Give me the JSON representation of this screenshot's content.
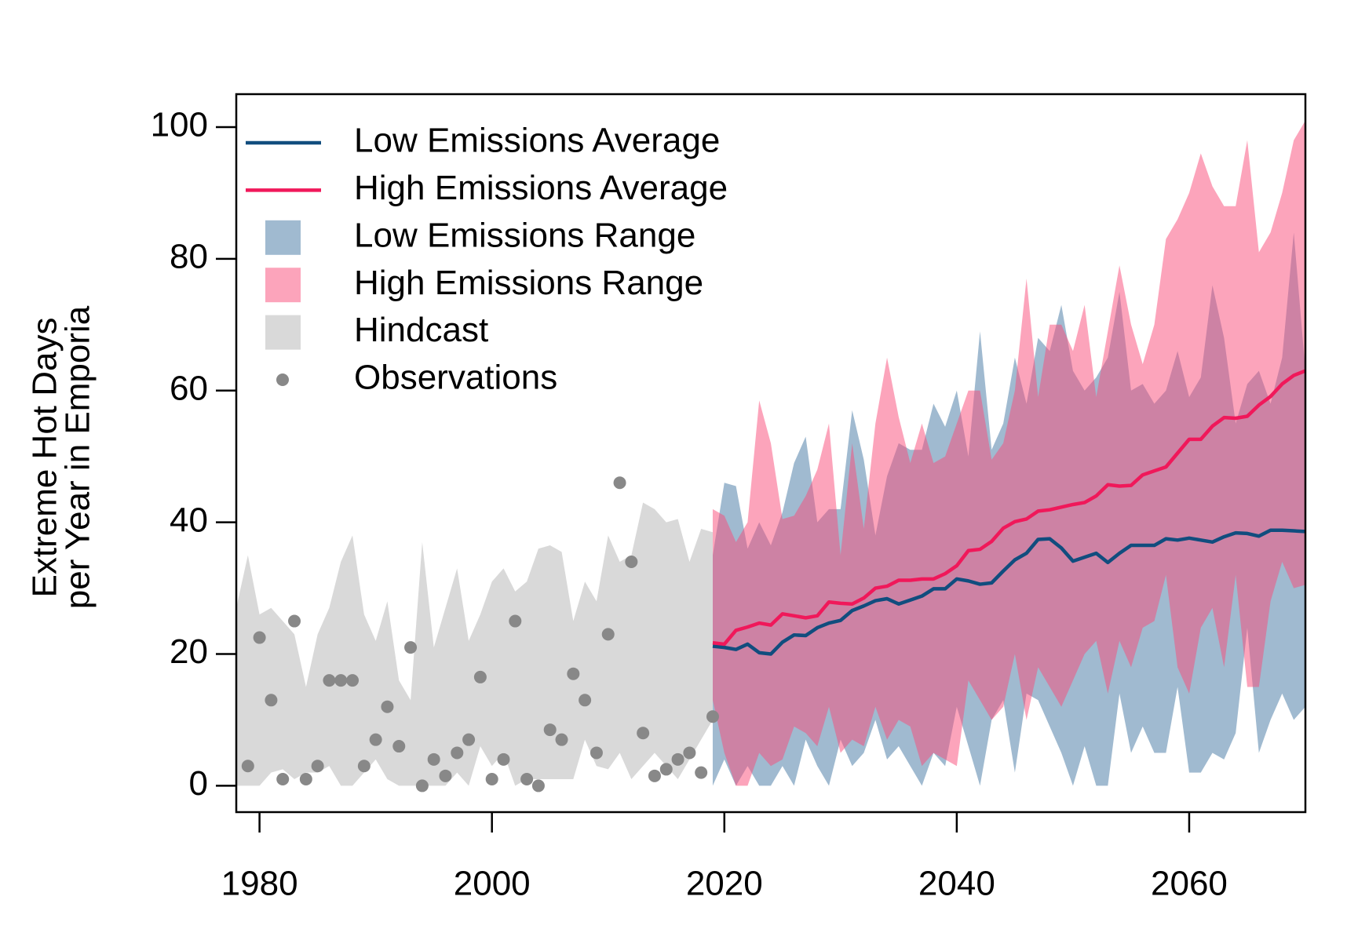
{
  "chart_data": {
    "type": "line",
    "ylabel": [
      "Extreme Hot Days",
      "per Year in Emporia"
    ],
    "xlim": [
      1978,
      2070
    ],
    "ylim": [
      -4,
      105
    ],
    "xticks": [
      1980,
      2000,
      2020,
      2040,
      2060
    ],
    "yticks": [
      0,
      20,
      40,
      60,
      80,
      100
    ],
    "legend": "top-left",
    "series": [
      {
        "name": "Low Emissions Average",
        "type": "line",
        "color": "#114d7e",
        "x": [
          2019,
          2020,
          2021,
          2022,
          2023,
          2024,
          2025,
          2026,
          2027,
          2028,
          2029,
          2030,
          2031,
          2032,
          2033,
          2034,
          2035,
          2036,
          2037,
          2038,
          2039,
          2040,
          2041,
          2042,
          2043,
          2044,
          2045,
          2046,
          2047,
          2048,
          2049,
          2050,
          2051,
          2052,
          2053,
          2054,
          2055,
          2056,
          2057,
          2058,
          2059,
          2060,
          2061,
          2062,
          2063,
          2064,
          2065,
          2066,
          2067,
          2068,
          2069,
          2070
        ],
        "values": [
          21.2,
          21,
          20.7,
          21.5,
          20.2,
          20,
          21.8,
          22.9,
          22.8,
          24,
          24.7,
          25.1,
          26.6,
          27.3,
          28.1,
          28.4,
          27.6,
          28.2,
          28.8,
          29.9,
          29.9,
          31.4,
          31.1,
          30.6,
          30.8,
          32.6,
          34.3,
          35.3,
          37.4,
          37.5,
          36.1,
          34.1,
          34.7,
          35.3,
          33.9,
          35.3,
          36.5,
          36.5,
          36.5,
          37.5,
          37.3,
          37.6,
          37.3,
          37,
          37.8,
          38.4,
          38.3,
          37.9,
          38.8,
          38.8,
          38.7,
          38.6
        ]
      },
      {
        "name": "High Emissions Average",
        "type": "line",
        "color": "#f0185a",
        "x": [
          2019,
          2020,
          2021,
          2022,
          2023,
          2024,
          2025,
          2026,
          2027,
          2028,
          2029,
          2030,
          2031,
          2032,
          2033,
          2034,
          2035,
          2036,
          2037,
          2038,
          2039,
          2040,
          2041,
          2042,
          2043,
          2044,
          2045,
          2046,
          2047,
          2048,
          2049,
          2050,
          2051,
          2052,
          2053,
          2054,
          2055,
          2056,
          2057,
          2058,
          2059,
          2060,
          2061,
          2062,
          2063,
          2064,
          2065,
          2066,
          2067,
          2068,
          2069,
          2070
        ],
        "values": [
          21.7,
          21.5,
          23.6,
          24.1,
          24.7,
          24.4,
          26.1,
          25.8,
          25.5,
          25.8,
          27.9,
          27.7,
          27.6,
          28.5,
          30,
          30.3,
          31.2,
          31.2,
          31.4,
          31.4,
          32.2,
          33.4,
          35.7,
          35.9,
          37.1,
          39.1,
          40.1,
          40.5,
          41.7,
          41.9,
          42.3,
          42.7,
          43,
          44,
          45.7,
          45.5,
          45.6,
          47.2,
          47.8,
          48.4,
          50.5,
          52.6,
          52.6,
          54.6,
          55.9,
          55.8,
          56.1,
          57.8,
          59.1,
          61,
          62.3,
          63
        ]
      },
      {
        "name": "Low Emissions Range",
        "type": "area",
        "color": "#4175a180",
        "x": [
          2019,
          2020,
          2021,
          2022,
          2023,
          2024,
          2025,
          2026,
          2027,
          2028,
          2029,
          2030,
          2031,
          2032,
          2033,
          2034,
          2035,
          2036,
          2037,
          2038,
          2039,
          2040,
          2041,
          2042,
          2043,
          2044,
          2045,
          2046,
          2047,
          2048,
          2049,
          2050,
          2051,
          2052,
          2053,
          2054,
          2055,
          2056,
          2057,
          2058,
          2059,
          2060,
          2061,
          2062,
          2063,
          2064,
          2065,
          2066,
          2067,
          2068,
          2069,
          2070
        ],
        "upper": [
          35,
          46,
          45.5,
          36,
          40,
          36.5,
          41.5,
          49,
          53,
          40,
          42,
          42,
          57,
          49.5,
          38,
          47,
          52,
          51,
          51,
          58,
          54.5,
          60,
          50,
          69,
          51,
          55,
          65,
          58,
          68,
          66,
          73,
          63,
          60,
          62,
          65,
          75,
          60,
          61,
          58,
          60,
          66,
          59,
          62,
          76,
          68,
          55,
          61,
          63,
          58,
          65,
          84,
          63
        ],
        "lower": [
          0,
          4,
          0,
          3,
          0,
          0,
          3,
          0,
          7,
          3,
          0,
          7,
          3,
          5,
          10,
          4,
          6,
          3,
          0,
          5,
          3,
          12,
          6,
          0,
          10,
          13,
          2,
          14,
          13,
          9,
          5,
          0,
          6,
          0,
          0,
          14,
          5,
          9,
          5,
          5,
          15,
          2,
          2,
          5,
          4,
          8,
          24,
          5,
          10,
          14,
          10,
          12
        ]
      },
      {
        "name": "High Emissions Range",
        "type": "area",
        "color": "#f9497780",
        "x": [
          2019,
          2020,
          2021,
          2022,
          2023,
          2024,
          2025,
          2026,
          2027,
          2028,
          2029,
          2030,
          2031,
          2032,
          2033,
          2034,
          2035,
          2036,
          2037,
          2038,
          2039,
          2040,
          2041,
          2042,
          2043,
          2044,
          2045,
          2046,
          2047,
          2048,
          2049,
          2050,
          2051,
          2052,
          2053,
          2054,
          2055,
          2056,
          2057,
          2058,
          2059,
          2060,
          2061,
          2062,
          2063,
          2064,
          2065,
          2066,
          2067,
          2068,
          2069,
          2070
        ],
        "upper": [
          42,
          41,
          37,
          40,
          58.5,
          52,
          40.5,
          41,
          44,
          48,
          55,
          35,
          52,
          39,
          55,
          65,
          56,
          49,
          55,
          49,
          50,
          55,
          60,
          60,
          49.5,
          52,
          60,
          77,
          59,
          70,
          70,
          66,
          73,
          59,
          69,
          79,
          70,
          64,
          70,
          83,
          86,
          90,
          96,
          91,
          88,
          88,
          98,
          81,
          84,
          90,
          98,
          101
        ],
        "lower": [
          13,
          5,
          0,
          0,
          5,
          3,
          4,
          9,
          8,
          6,
          12,
          5,
          7,
          6,
          12,
          7,
          10,
          9,
          3,
          5,
          4,
          3,
          16,
          13,
          10,
          12,
          20,
          10,
          18,
          15,
          12,
          16,
          20,
          22,
          14,
          22,
          18,
          24,
          25,
          32,
          18,
          14,
          24,
          27,
          18,
          32,
          15,
          15,
          28,
          34,
          30,
          30.5
        ]
      },
      {
        "name": "Hindcast",
        "type": "area",
        "color": "#d9d9d9",
        "x": [
          1978,
          1979,
          1980,
          1981,
          1982,
          1983,
          1984,
          1985,
          1986,
          1987,
          1988,
          1989,
          1990,
          1991,
          1992,
          1993,
          1994,
          1995,
          1996,
          1997,
          1998,
          1999,
          2000,
          2001,
          2002,
          2003,
          2004,
          2005,
          2006,
          2007,
          2008,
          2009,
          2010,
          2011,
          2012,
          2013,
          2014,
          2015,
          2016,
          2017,
          2018,
          2019
        ],
        "upper": [
          27,
          35,
          26,
          27,
          25,
          23,
          15,
          23,
          27,
          34,
          38,
          26,
          22,
          28,
          16,
          13,
          37,
          21,
          27,
          33,
          22,
          26,
          31,
          33,
          29.5,
          31,
          36,
          36.5,
          35.5,
          25,
          31,
          28,
          38,
          34,
          35,
          43,
          42,
          40,
          40.5,
          34,
          39,
          38.5
        ],
        "lower": [
          0,
          0,
          0,
          2,
          2.5,
          1,
          2,
          2,
          3,
          0,
          0,
          2,
          4,
          1,
          0,
          0,
          0,
          0,
          0,
          2,
          0,
          6,
          3,
          5,
          0,
          1,
          1,
          1,
          1,
          1,
          7,
          3,
          2.5,
          5,
          1,
          3,
          5,
          3,
          1,
          4,
          7,
          10
        ]
      },
      {
        "name": "Observations",
        "type": "scatter",
        "color": "#888888",
        "x": [
          1979,
          1980,
          1981,
          1982,
          1983,
          1984,
          1985,
          1986,
          1987,
          1988,
          1989,
          1990,
          1991,
          1992,
          1993,
          1994,
          1995,
          1996,
          1997,
          1998,
          1999,
          2000,
          2001,
          2002,
          2003,
          2004,
          2005,
          2006,
          2007,
          2008,
          2009,
          2010,
          2011,
          2012,
          2013,
          2014,
          2015,
          2016,
          2017,
          2018,
          2019
        ],
        "values": [
          3,
          22.5,
          13,
          1,
          25,
          1,
          3,
          16,
          16,
          16,
          3,
          7,
          12,
          6,
          21,
          0,
          4,
          1.5,
          5,
          7,
          16.5,
          1,
          4,
          25,
          1,
          0,
          8.5,
          7,
          17,
          13,
          5,
          23,
          46,
          34,
          8,
          1.5,
          2.5,
          4,
          5,
          2,
          10.5
        ]
      }
    ]
  }
}
